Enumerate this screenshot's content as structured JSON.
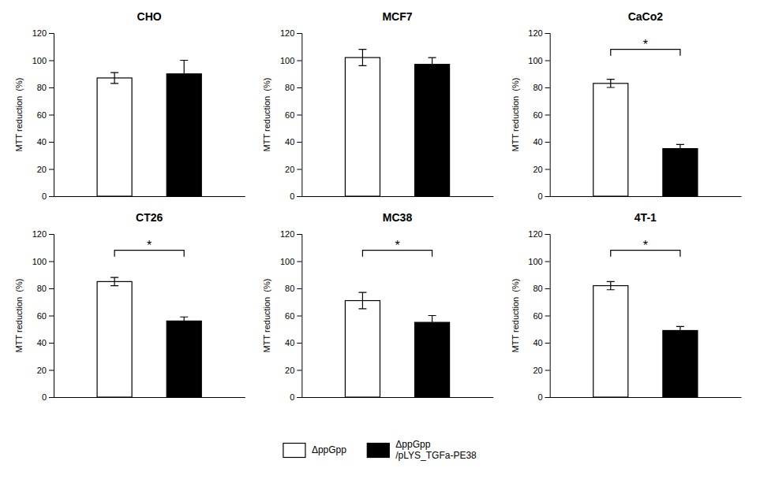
{
  "chart_data": [
    {
      "type": "bar",
      "title": "CHO",
      "ylabel": "MTT reduction  (%)",
      "categories": [
        null
      ],
      "series": [
        {
          "name": "ΔppGpp",
          "color": "white",
          "values": [
            87
          ],
          "errors": [
            4
          ]
        },
        {
          "name": "ΔppGpp\n/pLYS_TGFa-PE38",
          "color": "black",
          "values": [
            90
          ],
          "errors": [
            10
          ]
        }
      ],
      "ylim": [
        0,
        120
      ],
      "yticks": [
        0,
        20,
        40,
        60,
        80,
        100,
        120
      ],
      "grid": false,
      "legend": "bottom"
    },
    {
      "type": "bar",
      "title": "MCF7",
      "ylabel": "MTT reduction  (%)",
      "categories": [
        null
      ],
      "series": [
        {
          "name": "ΔppGpp",
          "color": "white",
          "values": [
            102
          ],
          "errors": [
            6
          ]
        },
        {
          "name": "ΔppGpp\n/pLYS_TGFa-PE38",
          "color": "black",
          "values": [
            97
          ],
          "errors": [
            5
          ]
        }
      ],
      "ylim": [
        0,
        120
      ],
      "yticks": [
        0,
        20,
        40,
        60,
        80,
        100,
        120
      ],
      "grid": false
    },
    {
      "type": "bar",
      "title": "CaCo2",
      "ylabel": "MTT reduction  (%)",
      "categories": [
        null
      ],
      "series": [
        {
          "name": "ΔppGpp",
          "color": "white",
          "values": [
            83
          ],
          "errors": [
            3
          ]
        },
        {
          "name": "ΔppGpp\n/pLYS_TGFa-PE38",
          "color": "black",
          "values": [
            35
          ],
          "errors": [
            3
          ]
        }
      ],
      "ylim": [
        0,
        120
      ],
      "yticks": [
        0,
        20,
        40,
        60,
        80,
        100,
        120
      ],
      "grid": false,
      "annotations": [
        "*"
      ]
    },
    {
      "type": "bar",
      "title": "CT26",
      "ylabel": "MTT reduction  (%)",
      "categories": [
        null
      ],
      "series": [
        {
          "name": "ΔppGpp",
          "color": "white",
          "values": [
            85
          ],
          "errors": [
            3
          ]
        },
        {
          "name": "ΔppGpp\n/pLYS_TGFa-PE38",
          "color": "black",
          "values": [
            56
          ],
          "errors": [
            3
          ]
        }
      ],
      "ylim": [
        0,
        120
      ],
      "yticks": [
        0,
        20,
        40,
        60,
        80,
        100,
        120
      ],
      "grid": false,
      "annotations": [
        "*"
      ]
    },
    {
      "type": "bar",
      "title": "MC38",
      "ylabel": "MTT reduction  (%)",
      "categories": [
        null
      ],
      "series": [
        {
          "name": "ΔppGpp",
          "color": "white",
          "values": [
            71
          ],
          "errors": [
            6
          ]
        },
        {
          "name": "ΔppGpp\n/pLYS_TGFa-PE38",
          "color": "black",
          "values": [
            55
          ],
          "errors": [
            5
          ]
        }
      ],
      "ylim": [
        0,
        120
      ],
      "yticks": [
        0,
        20,
        40,
        60,
        80,
        100,
        120
      ],
      "grid": false,
      "annotations": [
        "*"
      ]
    },
    {
      "type": "bar",
      "title": "4T-1",
      "ylabel": "MTT reduction  (%)",
      "categories": [
        null
      ],
      "series": [
        {
          "name": "ΔppGpp",
          "color": "white",
          "values": [
            82
          ],
          "errors": [
            3
          ]
        },
        {
          "name": "ΔppGpp\n/pLYS_TGFa-PE38",
          "color": "black",
          "values": [
            49
          ],
          "errors": [
            3
          ]
        }
      ],
      "ylim": [
        0,
        120
      ],
      "yticks": [
        0,
        20,
        40,
        60,
        80,
        100,
        120
      ],
      "grid": false,
      "annotations": [
        "*"
      ]
    }
  ]
}
